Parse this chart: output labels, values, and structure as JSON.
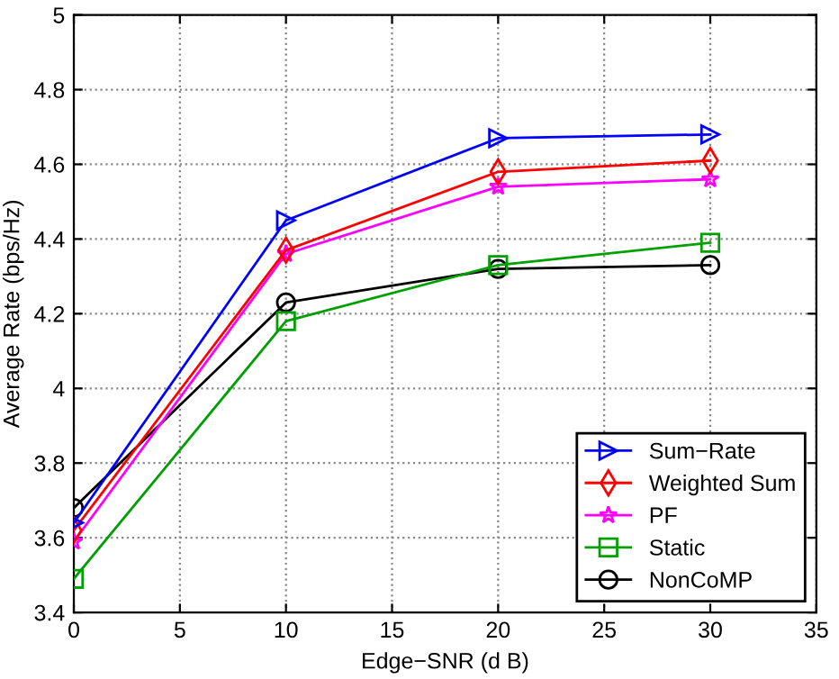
{
  "chart_data": {
    "type": "line",
    "xlabel": "Edge−SNR (d B)",
    "ylabel": "Average Rate (bps/Hz)",
    "x": [
      0,
      10,
      20,
      30
    ],
    "xlim": [
      0,
      35
    ],
    "xticks": [
      0,
      5,
      10,
      15,
      20,
      25,
      30,
      35
    ],
    "ylim": [
      3.4,
      5
    ],
    "yticks": [
      3.4,
      3.6,
      3.8,
      4,
      4.2,
      4.4,
      4.6,
      4.8,
      5
    ],
    "grid": true,
    "legend": "bottom right",
    "line_style": "solid",
    "series": [
      {
        "name": "Sum−Rate",
        "color": "#0000ff",
        "marker": "triangle",
        "values": [
          3.64,
          4.45,
          4.67,
          4.68
        ]
      },
      {
        "name": "Weighted Sum",
        "color": "#ff0000",
        "marker": "diamond",
        "values": [
          3.62,
          4.37,
          4.58,
          4.61
        ]
      },
      {
        "name": "PF",
        "color": "#ff00ff",
        "marker": "star",
        "values": [
          3.59,
          4.36,
          4.54,
          4.56
        ]
      },
      {
        "name": "Static",
        "color": "#00a000",
        "marker": "square",
        "values": [
          3.49,
          4.18,
          4.33,
          4.39
        ]
      },
      {
        "name": "NonCoMP",
        "color": "#000000",
        "marker": "circle",
        "values": [
          3.68,
          4.23,
          4.32,
          4.33
        ]
      }
    ]
  }
}
